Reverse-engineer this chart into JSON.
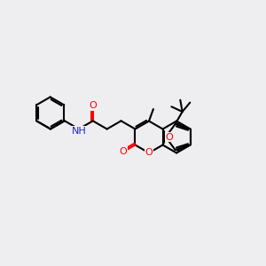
{
  "background_color": "#eeeef0",
  "bond_color": "#000000",
  "O_color": "#ff0000",
  "N_color": "#2222cc",
  "lw": 1.5,
  "fs": 8.0,
  "BL": 0.68,
  "figsize": [
    3.0,
    3.0
  ],
  "dpi": 100,
  "xlim": [
    0,
    10
  ],
  "ylim": [
    0,
    10
  ]
}
